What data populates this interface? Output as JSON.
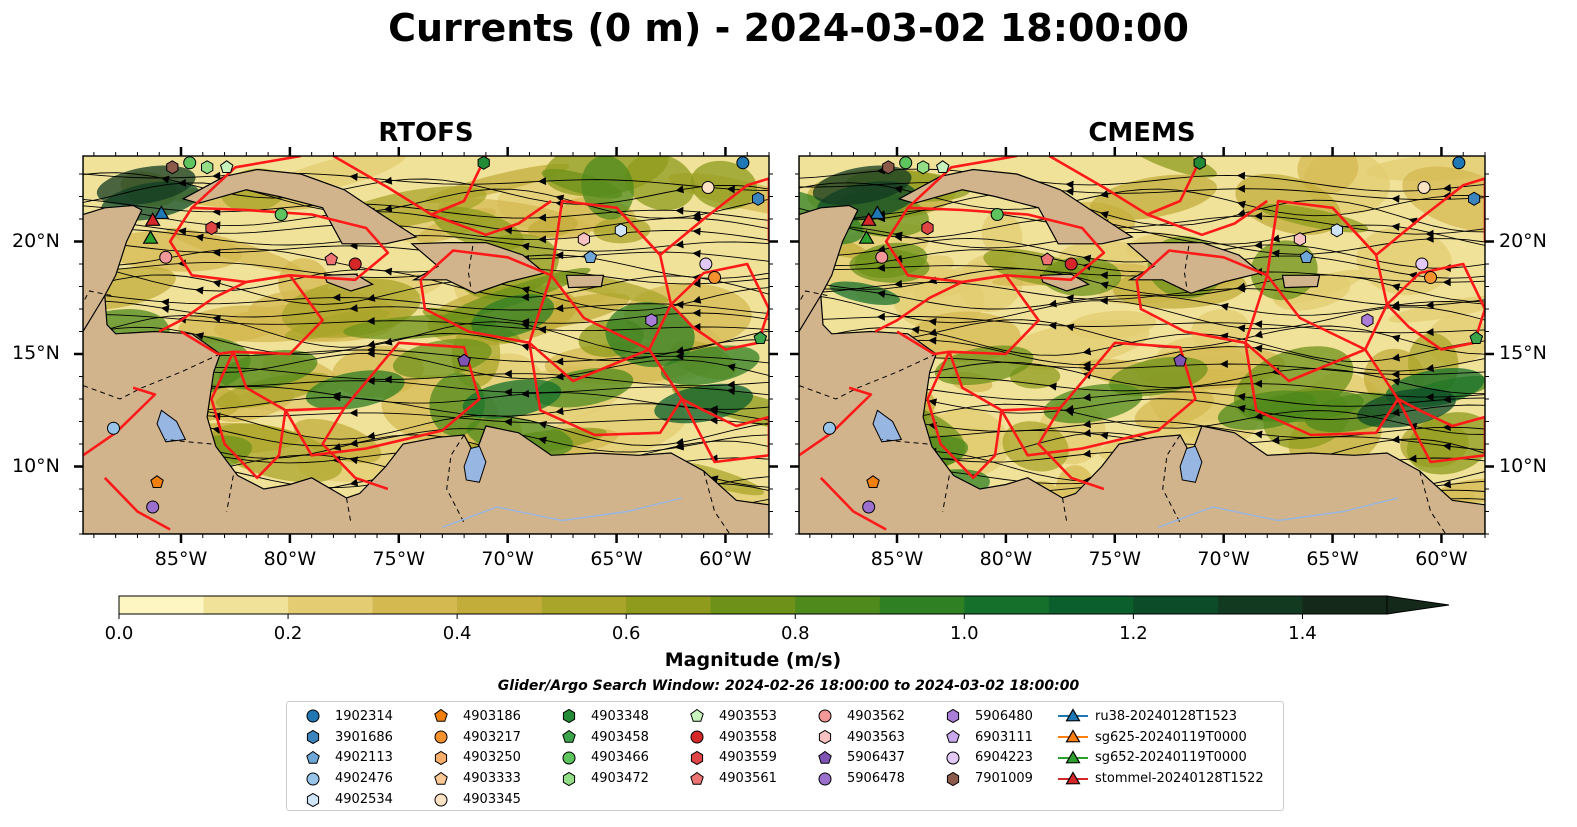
{
  "title": "Currents (0 m) - 2024-03-02 18:00:00",
  "panels": [
    {
      "name": "RTOFS"
    },
    {
      "name": "CMEMS"
    }
  ],
  "axes": {
    "lon_ticks": [
      "85°W",
      "80°W",
      "75°W",
      "70°W",
      "65°W",
      "60°W"
    ],
    "lat_ticks": [
      "20°N",
      "15°N",
      "10°N"
    ],
    "lon_range": [
      -89.5,
      -58.0
    ],
    "lat_range": [
      7.0,
      23.8
    ]
  },
  "colorbar": {
    "label": "Magnitude (m/s)",
    "ticks": [
      "0.0",
      "0.2",
      "0.4",
      "0.6",
      "0.8",
      "1.0",
      "1.2",
      "1.4"
    ],
    "range": [
      0.0,
      1.5
    ],
    "levels": 15,
    "extend": "max"
  },
  "search_window": "Glider/Argo Search Window: 2024-02-26 18:00:00 to 2024-03-02 18:00:00",
  "colors": {
    "land": "#d2b48c",
    "lake": "#97b6e1",
    "eez": "#ff1a1a",
    "cmap": [
      "#fdf6c3",
      "#f1e29a",
      "#e3cc72",
      "#d4b850",
      "#c2ac3a",
      "#a9a42a",
      "#8e9b1c",
      "#6e9119",
      "#4f8a1c",
      "#2f7f23",
      "#15702b",
      "#0b5f2c",
      "#0d4c28",
      "#123a21",
      "#15291a"
    ]
  },
  "legend": {
    "columns": [
      [
        {
          "label": "1902314",
          "marker": "circle",
          "color": "#1f77b4"
        },
        {
          "label": "3901686",
          "marker": "hexagon",
          "color": "#3b84bd"
        },
        {
          "label": "4902113",
          "marker": "pentagon",
          "color": "#6fa6d8"
        },
        {
          "label": "4902476",
          "marker": "circle",
          "color": "#98c4ea"
        },
        {
          "label": "4902534",
          "marker": "hexagon",
          "color": "#cfe5f7"
        }
      ],
      [
        {
          "label": "4903186",
          "marker": "pentagon",
          "color": "#f07f0c"
        },
        {
          "label": "4903217",
          "marker": "circle",
          "color": "#f6922e"
        },
        {
          "label": "4903250",
          "marker": "hexagon",
          "color": "#f8ad6a"
        },
        {
          "label": "4903333",
          "marker": "pentagon",
          "color": "#fbc995"
        },
        {
          "label": "4903345",
          "marker": "circle",
          "color": "#fde2c4"
        }
      ],
      [
        {
          "label": "4903348",
          "marker": "hexagon",
          "color": "#238b35"
        },
        {
          "label": "4903458",
          "marker": "pentagon",
          "color": "#3ba34a"
        },
        {
          "label": "4903466",
          "marker": "circle",
          "color": "#5ec45e"
        },
        {
          "label": "4903472",
          "marker": "hexagon",
          "color": "#92dd86"
        }
      ],
      [
        {
          "label": "4903553",
          "marker": "pentagon",
          "color": "#c7f3bd"
        },
        {
          "label": "4903558",
          "marker": "circle",
          "color": "#d62728"
        },
        {
          "label": "4903559",
          "marker": "hexagon",
          "color": "#e04545"
        },
        {
          "label": "4903561",
          "marker": "pentagon",
          "color": "#ee7474"
        }
      ],
      [
        {
          "label": "4903562",
          "marker": "circle",
          "color": "#f39898"
        },
        {
          "label": "4903563",
          "marker": "hexagon",
          "color": "#f8c2c2"
        },
        {
          "label": "5906437",
          "marker": "pentagon",
          "color": "#7f53b3"
        },
        {
          "label": "5906478",
          "marker": "circle",
          "color": "#9b6fcc"
        }
      ],
      [
        {
          "label": "5906480",
          "marker": "hexagon",
          "color": "#a97dd8"
        },
        {
          "label": "6903111",
          "marker": "pentagon",
          "color": "#caa8ec"
        },
        {
          "label": "6904223",
          "marker": "circle",
          "color": "#e2c9f5"
        },
        {
          "label": "7901009",
          "marker": "hexagon",
          "color": "#8c5a4a"
        }
      ],
      [
        {
          "label": "ru38-20240128T1523",
          "marker": "triangle",
          "color": "#1f77b4"
        },
        {
          "label": "sg625-20240119T0000",
          "marker": "triangle",
          "color": "#ff7f0e"
        },
        {
          "label": "sg652-20240119T0000",
          "marker": "triangle",
          "color": "#2ca02c"
        },
        {
          "label": "stommel-20240128T1522",
          "marker": "triangle",
          "color": "#d62728"
        }
      ]
    ]
  },
  "argo_floats": [
    {
      "lon": -59.2,
      "lat": 23.5,
      "color": "#1f77b4",
      "marker": "circle"
    },
    {
      "lon": -58.5,
      "lat": 21.9,
      "color": "#3b84bd",
      "marker": "hexagon"
    },
    {
      "lon": -66.2,
      "lat": 19.3,
      "color": "#6fa6d8",
      "marker": "pentagon"
    },
    {
      "lon": -88.1,
      "lat": 11.7,
      "color": "#98c4ea",
      "marker": "circle"
    },
    {
      "lon": -64.8,
      "lat": 20.5,
      "color": "#cfe5f7",
      "marker": "hexagon"
    },
    {
      "lon": -86.1,
      "lat": 9.3,
      "color": "#f07f0c",
      "marker": "pentagon"
    },
    {
      "lon": -60.5,
      "lat": 18.4,
      "color": "#f6922e",
      "marker": "circle"
    },
    {
      "lon": -60.8,
      "lat": 22.4,
      "color": "#fde2c4",
      "marker": "circle"
    },
    {
      "lon": -71.1,
      "lat": 23.5,
      "color": "#238b35",
      "marker": "hexagon"
    },
    {
      "lon": -58.4,
      "lat": 15.7,
      "color": "#3ba34a",
      "marker": "pentagon"
    },
    {
      "lon": -84.6,
      "lat": 23.5,
      "color": "#5ec45e",
      "marker": "circle"
    },
    {
      "lon": -83.8,
      "lat": 23.3,
      "color": "#92dd86",
      "marker": "hexagon"
    },
    {
      "lon": -82.9,
      "lat": 23.3,
      "color": "#c7f3bd",
      "marker": "pentagon"
    },
    {
      "lon": -77.0,
      "lat": 19.0,
      "color": "#d62728",
      "marker": "circle"
    },
    {
      "lon": -83.6,
      "lat": 20.6,
      "color": "#e04545",
      "marker": "hexagon"
    },
    {
      "lon": -78.1,
      "lat": 19.2,
      "color": "#ee7474",
      "marker": "pentagon"
    },
    {
      "lon": -85.7,
      "lat": 19.3,
      "color": "#f39898",
      "marker": "circle"
    },
    {
      "lon": -66.5,
      "lat": 20.1,
      "color": "#f8c2c2",
      "marker": "hexagon"
    },
    {
      "lon": -72.0,
      "lat": 14.7,
      "color": "#7f53b3",
      "marker": "pentagon"
    },
    {
      "lon": -86.3,
      "lat": 8.2,
      "color": "#9b6fcc",
      "marker": "circle"
    },
    {
      "lon": -63.4,
      "lat": 16.5,
      "color": "#a97dd8",
      "marker": "hexagon"
    },
    {
      "lon": -60.9,
      "lat": 19.0,
      "color": "#e2c9f5",
      "marker": "circle"
    },
    {
      "lon": -85.4,
      "lat": 23.3,
      "color": "#8c5a4a",
      "marker": "hexagon"
    },
    {
      "lon": -80.4,
      "lat": 21.2,
      "color": "#5ec45e",
      "marker": "circle"
    }
  ],
  "gliders": [
    {
      "lon": -85.9,
      "lat": 21.2,
      "color": "#1f77b4"
    },
    {
      "lon": -86.3,
      "lat": 20.9,
      "color": "#d62728"
    },
    {
      "lon": -86.4,
      "lat": 20.1,
      "color": "#2ca02c"
    }
  ]
}
